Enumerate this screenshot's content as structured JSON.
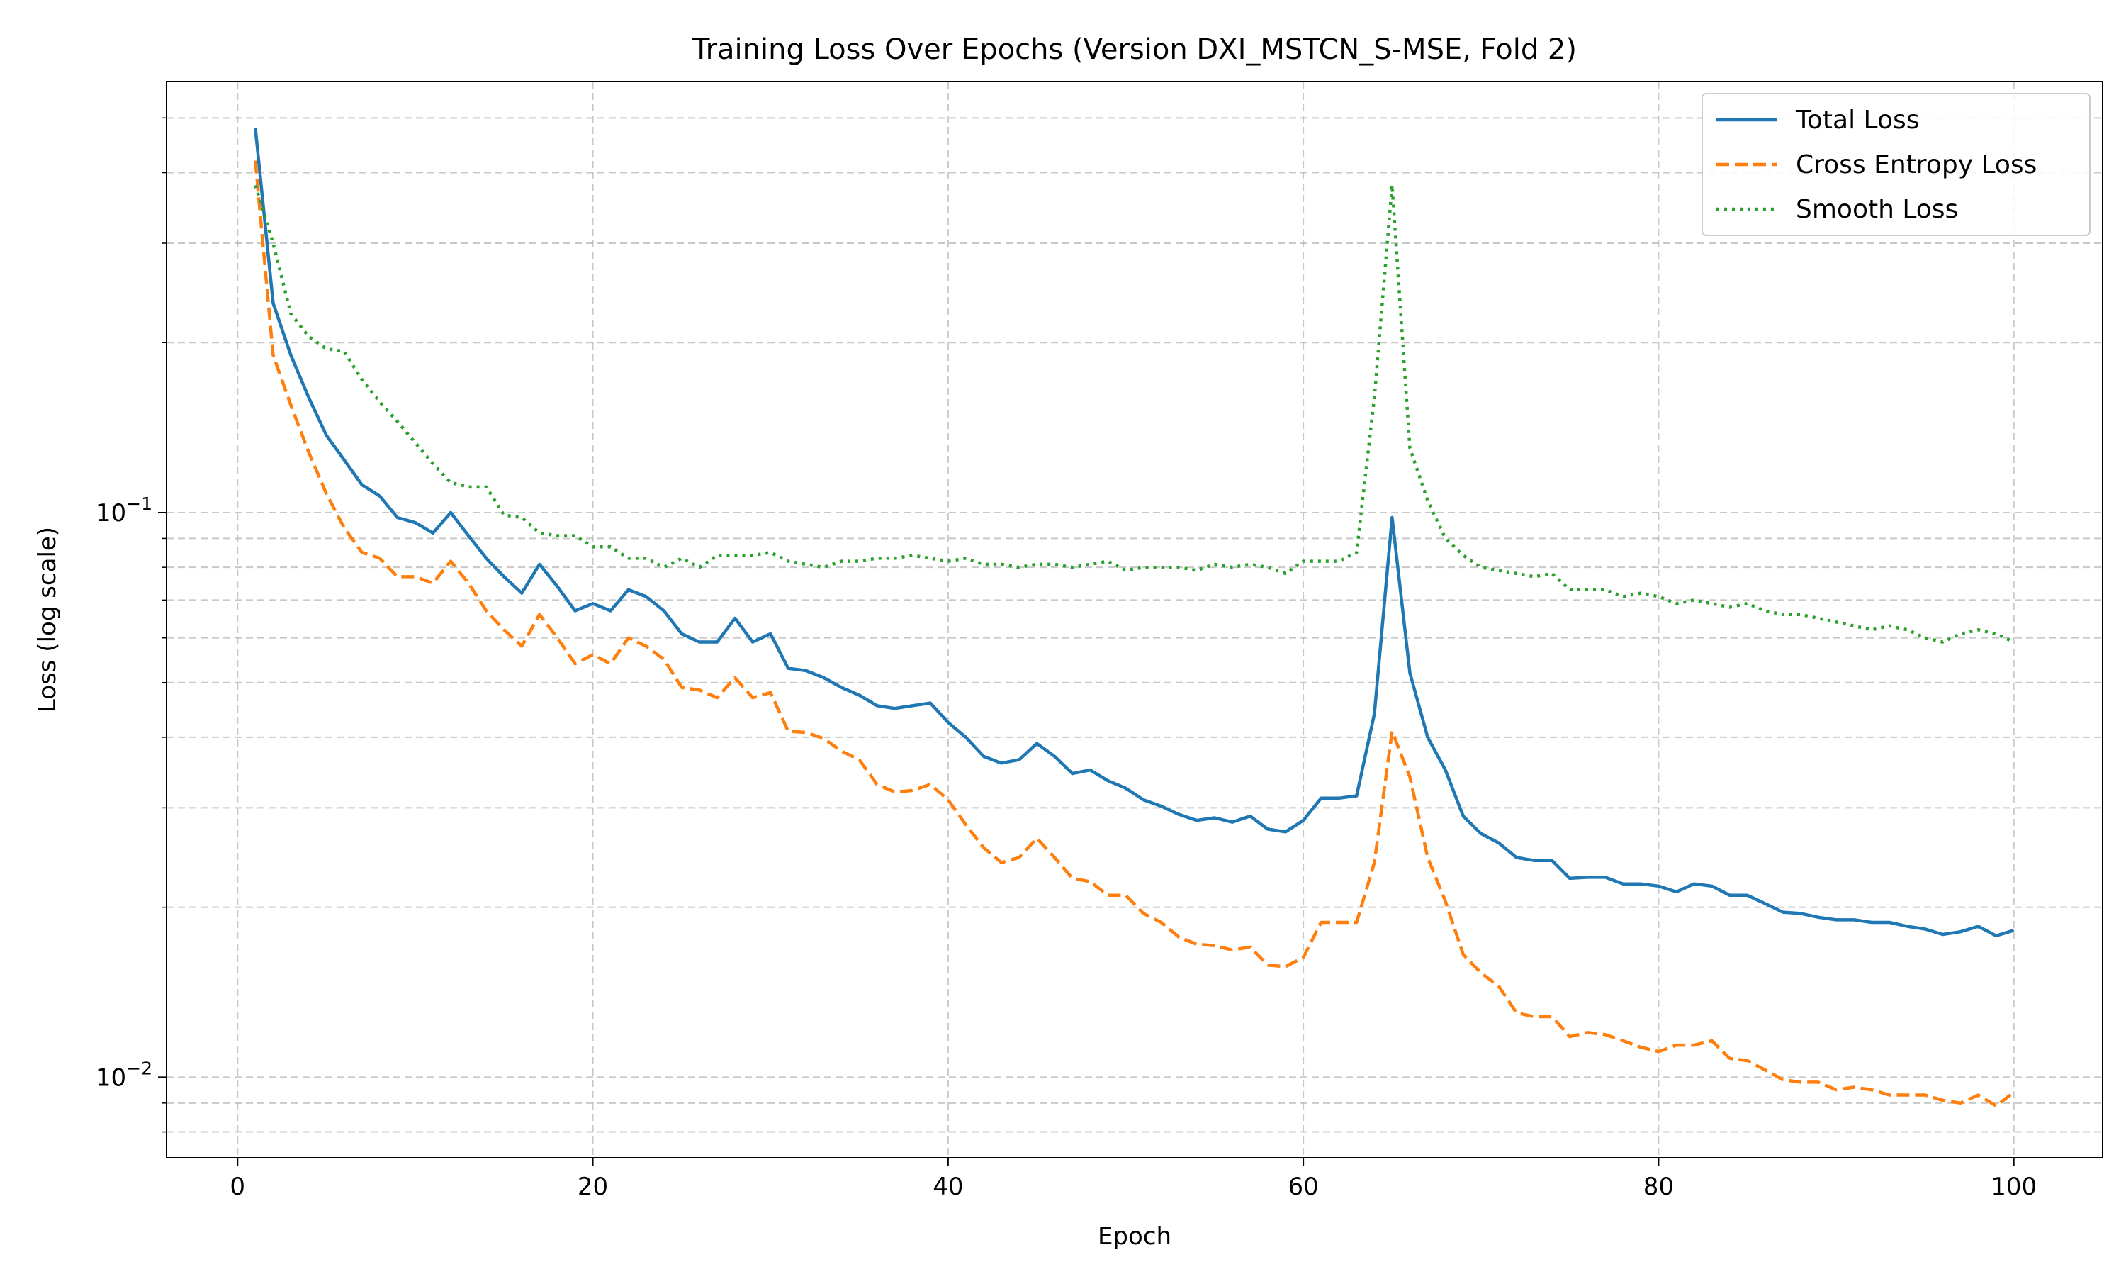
{
  "chart_data": {
    "type": "line",
    "title": "Training Loss Over Epochs (Version DXI_MSTCN_S-MSE, Fold 2)",
    "xlabel": "Epoch",
    "ylabel": "Loss (log scale)",
    "xlim": [
      -4,
      105
    ],
    "ylim": [
      0.0072,
      0.58
    ],
    "yscale": "log",
    "grid": true,
    "legend_position": "top-right",
    "x_ticks": [
      0,
      20,
      40,
      60,
      80,
      100
    ],
    "x_tick_labels": [
      "0",
      "20",
      "40",
      "60",
      "80",
      "100"
    ],
    "y_major_ticks": [
      0.01,
      0.1
    ],
    "y_tick_base": "10",
    "y_tick_exponents": [
      "−2",
      "−1"
    ],
    "y_minor_ticks": [
      0.008,
      0.009,
      0.02,
      0.03,
      0.04,
      0.05,
      0.06,
      0.07,
      0.08,
      0.09,
      0.2,
      0.3,
      0.4,
      0.5
    ],
    "x": [
      1,
      2,
      3,
      4,
      5,
      6,
      7,
      8,
      9,
      10,
      11,
      12,
      13,
      14,
      15,
      16,
      17,
      18,
      19,
      20,
      21,
      22,
      23,
      24,
      25,
      26,
      27,
      28,
      29,
      30,
      31,
      32,
      33,
      34,
      35,
      36,
      37,
      38,
      39,
      40,
      41,
      42,
      43,
      44,
      45,
      46,
      47,
      48,
      49,
      50,
      51,
      52,
      53,
      54,
      55,
      56,
      57,
      58,
      59,
      60,
      61,
      62,
      63,
      64,
      65,
      66,
      67,
      68,
      69,
      70,
      71,
      72,
      73,
      74,
      75,
      76,
      77,
      78,
      79,
      80,
      81,
      82,
      83,
      84,
      85,
      86,
      87,
      88,
      89,
      90,
      91,
      92,
      93,
      94,
      95,
      96,
      97,
      98,
      99,
      100
    ],
    "series": [
      {
        "name": "Total Loss",
        "color": "#1f77b4",
        "dash": "solid",
        "values": [
          0.48,
          0.235,
          0.19,
          0.16,
          0.137,
          0.124,
          0.112,
          0.107,
          0.098,
          0.096,
          0.092,
          0.1,
          0.091,
          0.083,
          0.077,
          0.072,
          0.081,
          0.074,
          0.067,
          0.069,
          0.067,
          0.073,
          0.071,
          0.067,
          0.061,
          0.059,
          0.059,
          0.065,
          0.059,
          0.061,
          0.053,
          0.0525,
          0.051,
          0.049,
          0.0475,
          0.0455,
          0.045,
          0.0455,
          0.046,
          0.0425,
          0.04,
          0.037,
          0.036,
          0.0365,
          0.039,
          0.037,
          0.0345,
          0.035,
          0.0335,
          0.0325,
          0.031,
          0.0302,
          0.0292,
          0.0285,
          0.0288,
          0.0283,
          0.029,
          0.0275,
          0.0272,
          0.0285,
          0.0312,
          0.0312,
          0.0315,
          0.044,
          0.098,
          0.052,
          0.04,
          0.035,
          0.029,
          0.027,
          0.026,
          0.0245,
          0.0242,
          0.0242,
          0.0225,
          0.0226,
          0.0226,
          0.022,
          0.022,
          0.0218,
          0.0213,
          0.022,
          0.0218,
          0.021,
          0.021,
          0.0203,
          0.0196,
          0.0195,
          0.0192,
          0.019,
          0.019,
          0.0188,
          0.0188,
          0.0185,
          0.0183,
          0.0179,
          0.0181,
          0.0185,
          0.0178,
          0.0182
        ]
      },
      {
        "name": "Cross Entropy Loss",
        "color": "#ff7f0e",
        "dash": "dashed",
        "values": [
          0.42,
          0.19,
          0.155,
          0.128,
          0.108,
          0.094,
          0.085,
          0.083,
          0.077,
          0.077,
          0.075,
          0.082,
          0.075,
          0.067,
          0.062,
          0.058,
          0.066,
          0.06,
          0.054,
          0.056,
          0.054,
          0.06,
          0.058,
          0.055,
          0.049,
          0.0485,
          0.047,
          0.051,
          0.047,
          0.048,
          0.041,
          0.0408,
          0.0398,
          0.0378,
          0.0365,
          0.033,
          0.032,
          0.0322,
          0.033,
          0.031,
          0.028,
          0.0255,
          0.024,
          0.0245,
          0.0265,
          0.0245,
          0.0225,
          0.0222,
          0.021,
          0.021,
          0.0195,
          0.0188,
          0.0177,
          0.0172,
          0.0171,
          0.0168,
          0.017,
          0.0158,
          0.0157,
          0.0163,
          0.0188,
          0.0188,
          0.0188,
          0.024,
          0.041,
          0.034,
          0.0245,
          0.0205,
          0.0165,
          0.0153,
          0.0145,
          0.013,
          0.0128,
          0.0128,
          0.0118,
          0.012,
          0.0119,
          0.0116,
          0.0113,
          0.0111,
          0.0114,
          0.0114,
          0.0116,
          0.0108,
          0.0107,
          0.0103,
          0.0099,
          0.0098,
          0.0098,
          0.0095,
          0.0096,
          0.0095,
          0.0093,
          0.0093,
          0.0093,
          0.0091,
          0.009,
          0.0093,
          0.0089,
          0.0094
        ]
      },
      {
        "name": "Smooth Loss",
        "color": "#2ca02c",
        "dash": "dotted",
        "values": [
          0.38,
          0.3,
          0.225,
          0.205,
          0.195,
          0.193,
          0.172,
          0.157,
          0.145,
          0.133,
          0.122,
          0.113,
          0.111,
          0.111,
          0.099,
          0.098,
          0.092,
          0.091,
          0.091,
          0.087,
          0.087,
          0.083,
          0.083,
          0.08,
          0.083,
          0.08,
          0.084,
          0.084,
          0.084,
          0.085,
          0.082,
          0.081,
          0.08,
          0.082,
          0.082,
          0.083,
          0.083,
          0.084,
          0.083,
          0.082,
          0.083,
          0.081,
          0.081,
          0.08,
          0.081,
          0.081,
          0.08,
          0.081,
          0.082,
          0.079,
          0.08,
          0.08,
          0.08,
          0.079,
          0.081,
          0.08,
          0.081,
          0.08,
          0.078,
          0.082,
          0.082,
          0.082,
          0.085,
          0.16,
          0.38,
          0.13,
          0.105,
          0.09,
          0.084,
          0.08,
          0.079,
          0.078,
          0.077,
          0.078,
          0.073,
          0.073,
          0.073,
          0.071,
          0.072,
          0.071,
          0.069,
          0.07,
          0.069,
          0.068,
          0.069,
          0.067,
          0.066,
          0.066,
          0.065,
          0.064,
          0.063,
          0.062,
          0.063,
          0.062,
          0.06,
          0.059,
          0.061,
          0.062,
          0.061,
          0.059
        ]
      }
    ]
  }
}
